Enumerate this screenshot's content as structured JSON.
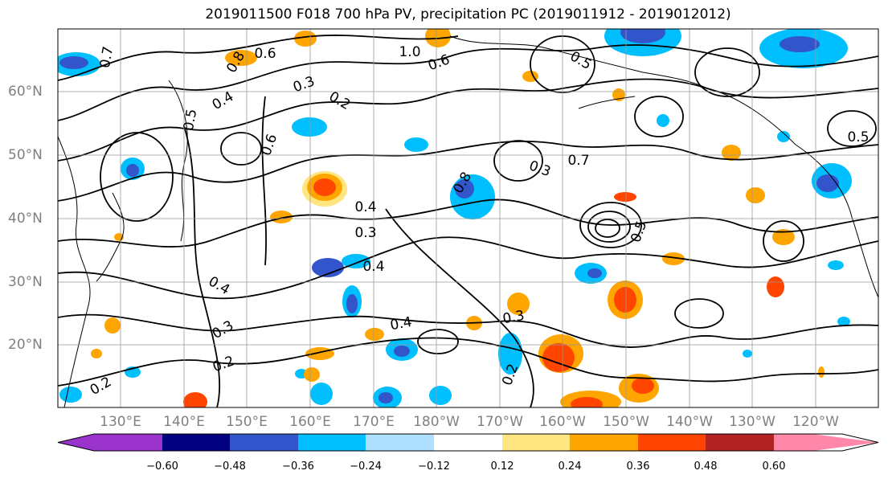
{
  "title": "2019011500 F018 700 hPa PV, precipitation PC (2019011912 - 2019012012)",
  "lat_labels": [
    "60°N",
    "50°N",
    "40°N",
    "30°N",
    "20°N"
  ],
  "lon_labels": [
    "130°E",
    "140°E",
    "150°E",
    "160°E",
    "170°E",
    "180°W",
    "170°W",
    "160°W",
    "150°W",
    "140°W",
    "130°W",
    "120°W"
  ],
  "colorbar": {
    "ticks": [
      "−0.60",
      "−0.48",
      "−0.36",
      "−0.24",
      "−0.12",
      "0.12",
      "0.24",
      "0.36",
      "0.48",
      "0.60"
    ],
    "colors": [
      "#9933cc",
      "#000080",
      "#3355cc",
      "#00bfff",
      "#b0e0ff",
      "#ffffff",
      "#ffe680",
      "#ffa500",
      "#ff4500",
      "#b22222",
      "#ff88aa"
    ]
  },
  "contour_labels": [
    "0.7",
    "1.0",
    "0.6",
    "0.8",
    "0.5",
    "0.4",
    "0.3",
    "0.2",
    "0.6",
    "0.4",
    "0.3",
    "0.8",
    "0.3",
    "0.5",
    "0.4",
    "0.2",
    "0.3",
    "0.5",
    "0.7",
    "0.4",
    "0.6",
    "0.3",
    "0.2",
    "0.2",
    "0.4",
    "0.5"
  ]
}
